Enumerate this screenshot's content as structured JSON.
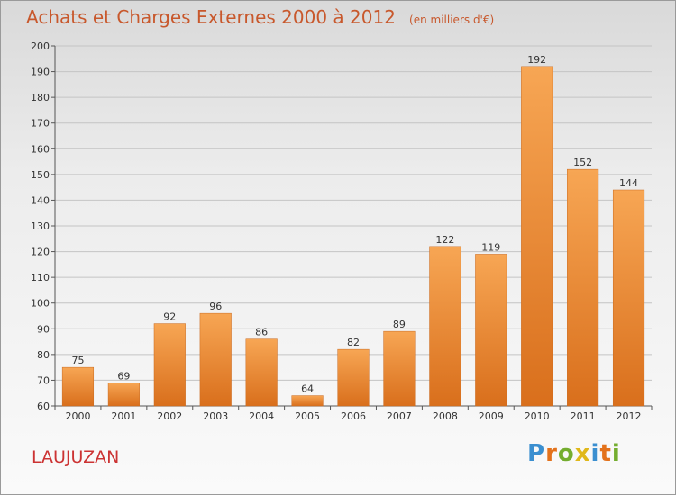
{
  "header": {
    "title": "Achats et Charges Externes 2000 à 2012",
    "subtitle": "(en milliers d'€)"
  },
  "footer": {
    "commune": "LAUJUZAN",
    "logo_text": "Proxiti",
    "logo_colors": [
      "#3b8fd0",
      "#e3721c",
      "#74ad2f",
      "#e0b81a",
      "#3b8fd0",
      "#e3721c",
      "#74ad2f"
    ]
  },
  "chart_data": {
    "type": "bar",
    "title": "Achats et Charges Externes 2000 à 2012",
    "subtitle": "(en milliers d'€)",
    "categories": [
      "2000",
      "2001",
      "2002",
      "2003",
      "2004",
      "2005",
      "2006",
      "2007",
      "2008",
      "2009",
      "2010",
      "2011",
      "2012"
    ],
    "values": [
      75,
      69,
      92,
      96,
      86,
      64,
      82,
      89,
      122,
      119,
      192,
      152,
      144
    ],
    "ylim": [
      60,
      200
    ],
    "yticks": [
      60,
      70,
      80,
      90,
      100,
      110,
      120,
      130,
      140,
      150,
      160,
      170,
      180,
      190,
      200
    ],
    "grid": true,
    "bar_color": "#e8802a",
    "xlabel": "",
    "ylabel": ""
  }
}
